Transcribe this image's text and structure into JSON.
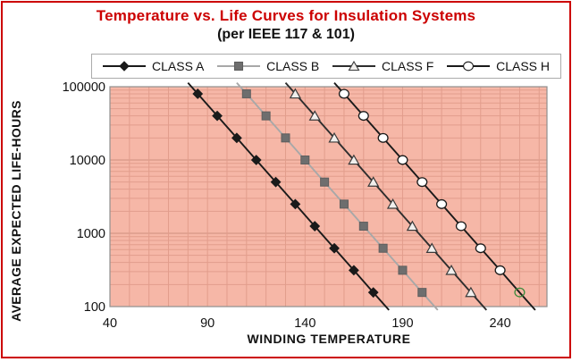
{
  "page": {
    "title": "Temperature vs. Life Curves for Insulation Systems",
    "subtitle": "(per IEEE 117 & 101)",
    "title_color": "#cc0000",
    "border_color": "#cc0000"
  },
  "chart_data": {
    "type": "line",
    "title": "Temperature vs. Life Curves for Insulation Systems",
    "subtitle": "(per IEEE 117 & 101)",
    "xlabel": "WINDING TEMPERATURE",
    "ylabel": "AVERAGE EXPECTED LIFE-HOURS",
    "x_scale": "linear",
    "y_scale": "log",
    "xlim": [
      40,
      264
    ],
    "ylim": [
      100,
      100000
    ],
    "x_ticks": [
      40,
      90,
      140,
      190,
      240
    ],
    "y_ticks": [
      100000,
      10000,
      1000,
      100
    ],
    "grid": {
      "vertical_step_degC": 10,
      "horizontal": "log decades with 2-9 minor lines"
    },
    "legend_position": "top",
    "plot_bg_color": "#f6b7a7",
    "grid_minor_color": "#e29d8c",
    "grid_major_color": "#cf8f7e",
    "plot_border_color": "#8f8f8f",
    "series": [
      {
        "name": "CLASS A",
        "marker": "diamond",
        "line_color": "#1a1a1a",
        "marker_fill": "#1a1a1a",
        "marker_stroke": "#1a1a1a",
        "temps": [
          85,
          95,
          105,
          115,
          125,
          135,
          145,
          155,
          165,
          175
        ],
        "life_hours": [
          80000,
          40000,
          20000,
          10000,
          5000,
          2500,
          1250,
          625,
          313,
          156
        ]
      },
      {
        "name": "CLASS B",
        "marker": "square",
        "line_color": "#a8a8a8",
        "marker_fill": "#6e6e6e",
        "marker_stroke": "#5e5e5e",
        "temps": [
          110,
          120,
          130,
          140,
          150,
          160,
          170,
          180,
          190,
          200
        ],
        "life_hours": [
          80000,
          40000,
          20000,
          10000,
          5000,
          2500,
          1250,
          625,
          313,
          156
        ]
      },
      {
        "name": "CLASS F",
        "marker": "triangle",
        "line_color": "#2e2e2e",
        "marker_fill": "#f1efed",
        "marker_stroke": "#3a3a3a",
        "temps": [
          135,
          145,
          155,
          165,
          175,
          185,
          195,
          205,
          215,
          225
        ],
        "life_hours": [
          80000,
          40000,
          20000,
          10000,
          5000,
          2500,
          1250,
          625,
          313,
          156
        ]
      },
      {
        "name": "CLASS H",
        "marker": "circle",
        "line_color": "#1a1a1a",
        "marker_fill": "#ffffff",
        "marker_stroke": "#1a1a1a",
        "temps": [
          160,
          170,
          180,
          190,
          200,
          210,
          220,
          230,
          240,
          250
        ],
        "life_hours": [
          80000,
          40000,
          20000,
          10000,
          5000,
          2500,
          1250,
          625,
          313,
          156
        ],
        "last_marker_override": {
          "stroke": "#3d8b3d",
          "fill": "none"
        }
      }
    ],
    "annotations": [
      {
        "text": "last CLASS H point circled in green",
        "temp": 250,
        "life_hours": 156
      }
    ]
  }
}
